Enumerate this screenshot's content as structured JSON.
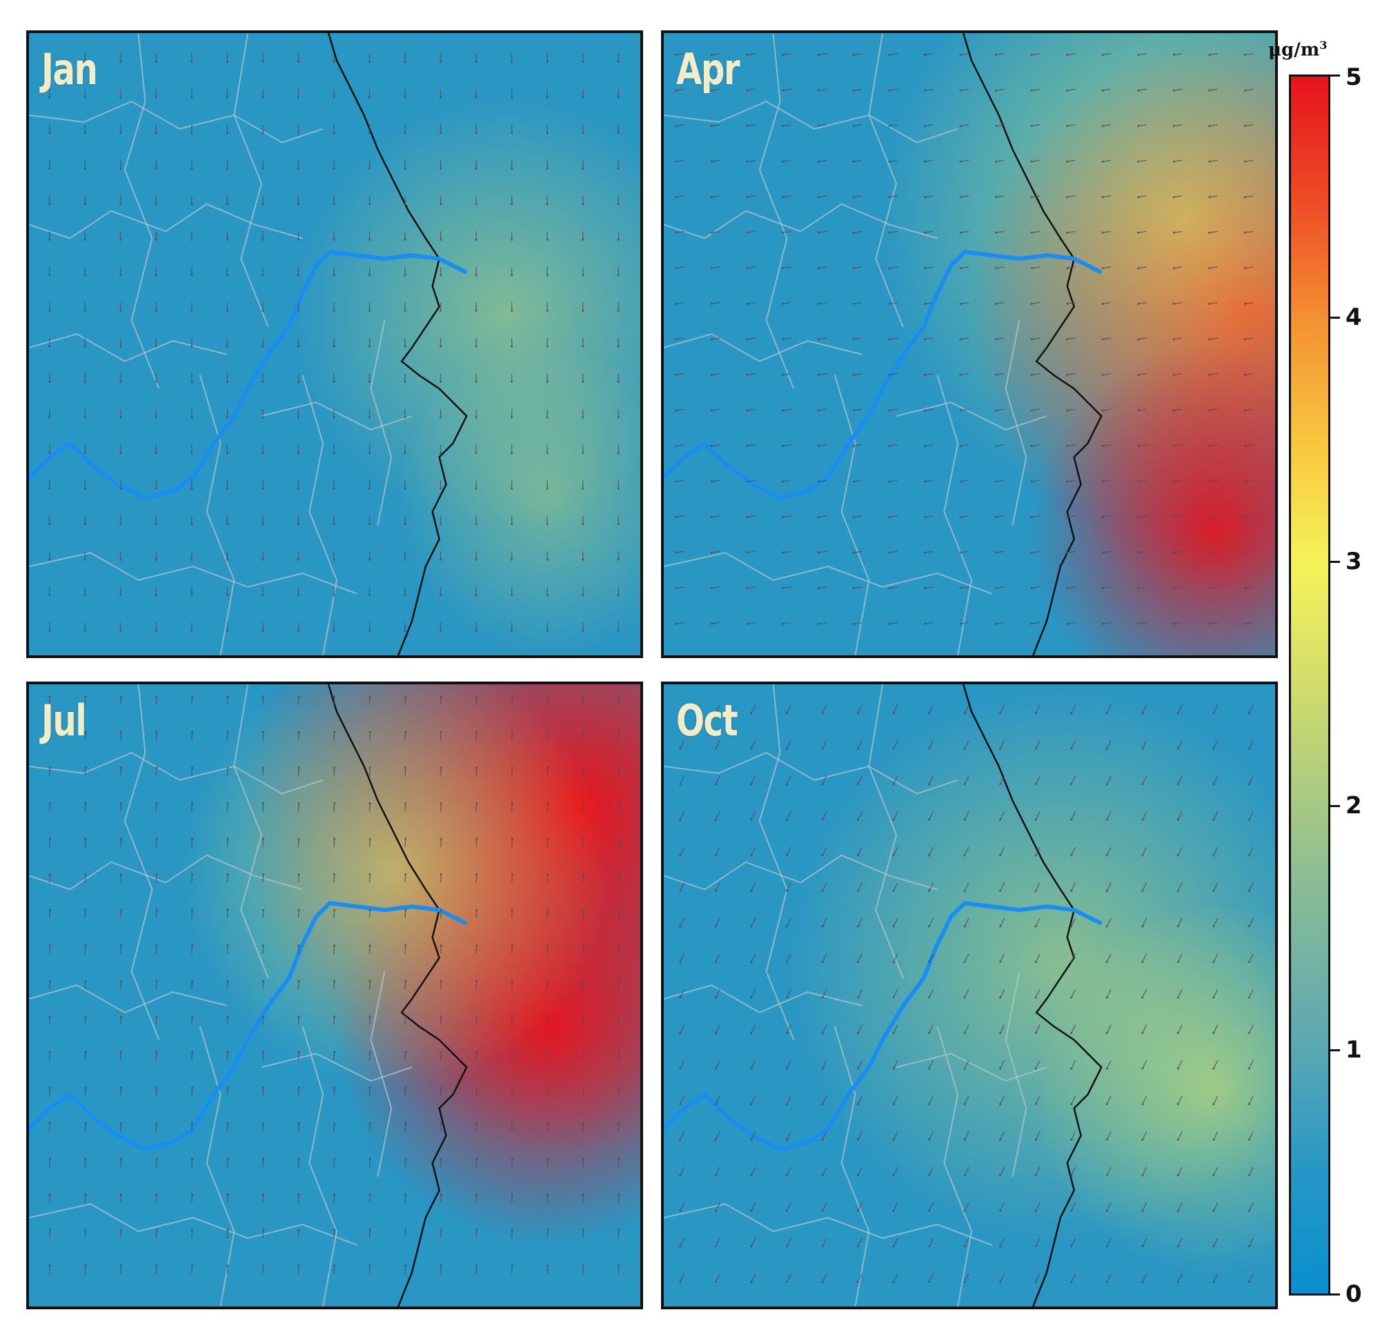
{
  "panels": [
    {
      "label": "Jan",
      "intensity": 0.55,
      "wind": "south"
    },
    {
      "label": "Apr",
      "intensity": 1.0,
      "wind": "west"
    },
    {
      "label": "Jul",
      "intensity": 1.25,
      "wind": "north"
    },
    {
      "label": "Oct",
      "intensity": 0.6,
      "wind": "southwest"
    }
  ],
  "colorbar": {
    "unit_base": "μg/m",
    "unit_exp": "3",
    "ticks": [
      "0",
      "1",
      "2",
      "3",
      "4",
      "5"
    ],
    "min": 0,
    "max": 5,
    "colors": [
      "#0a8fcf",
      "#5aa7b4",
      "#c9d870",
      "#f6f35a",
      "#f59033",
      "#e8131c"
    ]
  }
}
